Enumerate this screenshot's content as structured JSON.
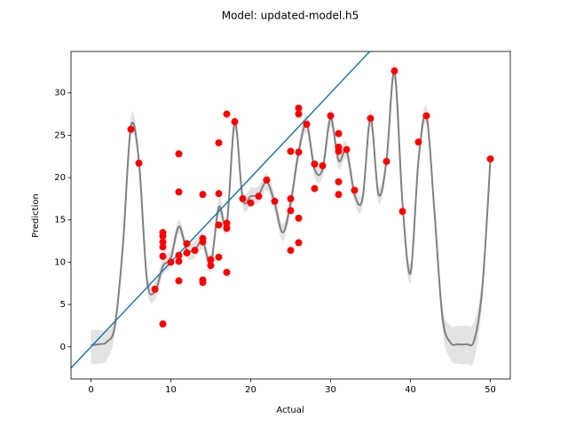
{
  "chart_data": {
    "type": "scatter",
    "title": "Model: updated-model.h5",
    "x_label": "Actual",
    "y_label": "Prediction",
    "xlim": [
      -2.5,
      52.5
    ],
    "ylim": [
      -3.8,
      34.9
    ],
    "xticks": [
      0,
      10,
      20,
      30,
      40,
      50
    ],
    "yticks": [
      0,
      5,
      10,
      15,
      20,
      25,
      30
    ],
    "identity_line": {
      "color": "#1f77b4"
    },
    "curve": {
      "color": "#808080",
      "x": [
        0,
        1,
        2,
        3,
        4,
        5,
        6,
        7,
        8,
        9,
        10,
        11,
        12,
        13,
        14,
        15,
        16,
        17,
        18,
        19,
        20,
        21,
        22,
        23,
        24,
        25,
        26,
        27,
        28,
        29,
        30,
        31,
        32,
        33,
        34,
        35,
        36,
        37,
        38,
        39,
        40,
        41,
        42,
        43,
        44,
        45,
        46,
        47,
        48,
        49,
        50
      ],
      "values": [
        0.2,
        0.3,
        0.6,
        2.5,
        12,
        26,
        22,
        8,
        6.5,
        9.5,
        10.5,
        14.2,
        11.5,
        11.5,
        12.5,
        9.8,
        16.5,
        14.5,
        26.5,
        17.5,
        17.8,
        18,
        19.5,
        17,
        13.5,
        17,
        23,
        26.3,
        21,
        21,
        27,
        22,
        23.2,
        18,
        17.5,
        27,
        18,
        22,
        32.5,
        17,
        8.7,
        22,
        27.3,
        16,
        3.5,
        0.5,
        0.3,
        0.3,
        0.8,
        7,
        22
      ]
    },
    "band": {
      "color": "#dcdcdc",
      "upper": [
        2,
        2,
        2,
        3.5,
        13,
        27.3,
        23,
        9,
        7.5,
        10.5,
        11.5,
        15,
        12.5,
        12.5,
        13.5,
        10.8,
        17.5,
        15.5,
        27.5,
        18.5,
        18.8,
        19,
        20.5,
        18,
        14.5,
        18,
        24,
        27.3,
        22,
        22,
        28,
        23,
        24.2,
        19,
        18.5,
        28,
        19,
        23,
        33.5,
        18,
        9.8,
        23,
        28.3,
        17,
        5,
        2.5,
        2.5,
        2.5,
        3,
        8.5,
        22.5
      ],
      "lower": [
        -2,
        -2,
        -1.5,
        1.5,
        11,
        24.7,
        21,
        7,
        5.5,
        8.5,
        9.5,
        13.4,
        10.5,
        10.5,
        11.5,
        8.8,
        15.5,
        13.5,
        25.5,
        16.5,
        16.8,
        17,
        18.5,
        16,
        12.5,
        16,
        22,
        25.3,
        20,
        20,
        26,
        21,
        22.2,
        17,
        16.5,
        26,
        17,
        21,
        31.5,
        16,
        7.5,
        21,
        26.3,
        15,
        2,
        -1.5,
        -2,
        -2,
        -1.5,
        5.5,
        21.5
      ]
    },
    "points": {
      "color": "#ff0000",
      "x": [
        5,
        6,
        8,
        9,
        9,
        9,
        9,
        9,
        9,
        10,
        11,
        11,
        11,
        11,
        11,
        12,
        12,
        13,
        14,
        14,
        14,
        14,
        14,
        15,
        15,
        16,
        16,
        16,
        16,
        17,
        17,
        17,
        17,
        18,
        19,
        20,
        21,
        22,
        23,
        25,
        25,
        25,
        25,
        26,
        26,
        26,
        26,
        26,
        27,
        28,
        28,
        29,
        30,
        31,
        31,
        31,
        31,
        31,
        32,
        33,
        35,
        37,
        38,
        39,
        41,
        42,
        50
      ],
      "values": [
        25.7,
        21.7,
        6.8,
        2.7,
        10.7,
        11.8,
        12.4,
        13.1,
        13.5,
        10,
        22.8,
        18.3,
        10.8,
        10.1,
        7.8,
        12.2,
        11.1,
        11.4,
        12.8,
        12.4,
        18,
        7.9,
        7.6,
        10.3,
        9.6,
        24.1,
        18.1,
        14.4,
        10.6,
        27.5,
        14.6,
        14,
        8.8,
        26.6,
        17.5,
        17,
        17.8,
        19.7,
        17.2,
        23.1,
        17.5,
        16.1,
        11.4,
        28.2,
        27.5,
        23,
        15.2,
        12.3,
        26.3,
        21.6,
        18.7,
        21.4,
        27.3,
        25.2,
        23.6,
        23.1,
        19.5,
        18,
        23.3,
        18.5,
        27,
        21.9,
        32.6,
        16,
        24.2,
        27.3,
        22.2
      ]
    }
  }
}
